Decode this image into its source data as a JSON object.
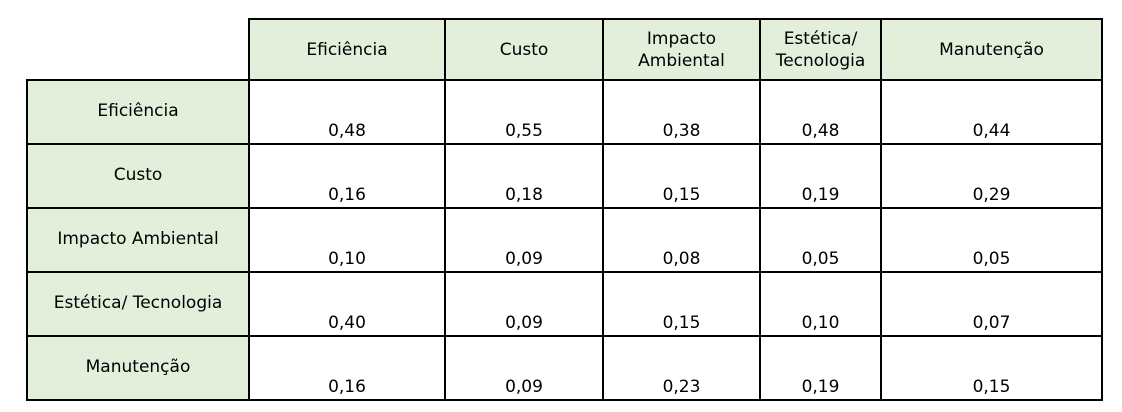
{
  "table": {
    "columns": [
      "Eficiência",
      "Custo",
      "Impacto Ambiental",
      "Estética/ Tecnologia",
      "Manutenção"
    ],
    "column_lines": [
      [
        "Eficiência"
      ],
      [
        "Custo"
      ],
      [
        "Impacto",
        "Ambiental"
      ],
      [
        "Estética/",
        "Tecnologia"
      ],
      [
        "Manutenção"
      ]
    ],
    "rows": [
      {
        "label": "Eficiência",
        "values": [
          "0,48",
          "0,55",
          "0,38",
          "0,48",
          "0,44"
        ]
      },
      {
        "label": "Custo",
        "values": [
          "0,16",
          "0,18",
          "0,15",
          "0,19",
          "0,29"
        ]
      },
      {
        "label": "Impacto Ambiental",
        "values": [
          "0,10",
          "0,09",
          "0,08",
          "0,05",
          "0,05"
        ]
      },
      {
        "label": "Estética/ Tecnologia",
        "values": [
          "0,40",
          "0,09",
          "0,15",
          "0,10",
          "0,07"
        ]
      },
      {
        "label": "Manutenção",
        "values": [
          "0,16",
          "0,09",
          "0,23",
          "0,19",
          "0,15"
        ]
      }
    ]
  },
  "colors": {
    "header_background": "#e3eedb",
    "border": "#000000"
  }
}
